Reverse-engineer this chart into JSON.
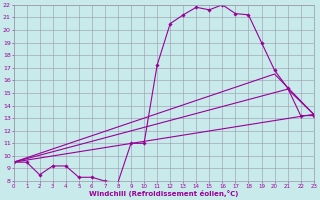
{
  "xlabel": "Windchill (Refroidissement éolien,°C)",
  "bg_color": "#c8eaea",
  "line_color": "#990099",
  "grid_color": "#9999aa",
  "series1_x": [
    0,
    1,
    2,
    3,
    4,
    5,
    6,
    7,
    8,
    9,
    10,
    11,
    12,
    13,
    14,
    15,
    16,
    17,
    18,
    19,
    20,
    21,
    22,
    23
  ],
  "series1_y": [
    9.5,
    9.5,
    8.5,
    9.2,
    9.2,
    8.3,
    8.3,
    8.0,
    7.9,
    11.0,
    11.0,
    17.2,
    20.5,
    21.2,
    21.8,
    21.6,
    22.0,
    21.3,
    21.2,
    19.0,
    16.8,
    15.4,
    13.2,
    13.2
  ],
  "series2_x": [
    0,
    23
  ],
  "series2_y": [
    9.5,
    13.3
  ],
  "series3_x": [
    0,
    20,
    23
  ],
  "series3_y": [
    9.5,
    16.5,
    13.3
  ],
  "series4_x": [
    0,
    21,
    23
  ],
  "series4_y": [
    9.5,
    15.3,
    13.3
  ],
  "xmin": 0,
  "xmax": 23,
  "ymin": 8,
  "ymax": 22,
  "yticks": [
    8,
    9,
    10,
    11,
    12,
    13,
    14,
    15,
    16,
    17,
    18,
    19,
    20,
    21,
    22
  ],
  "xticks": [
    0,
    1,
    2,
    3,
    4,
    5,
    6,
    7,
    8,
    9,
    10,
    11,
    12,
    13,
    14,
    15,
    16,
    17,
    18,
    19,
    20,
    21,
    22,
    23
  ]
}
